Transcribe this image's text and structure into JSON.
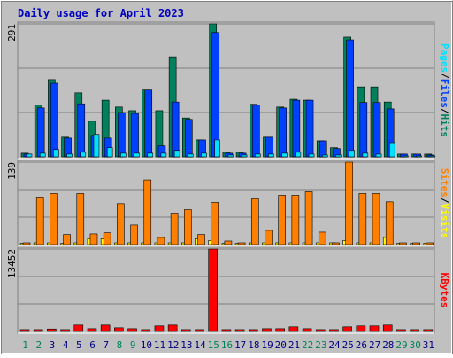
{
  "title": "Daily usage for April 2023",
  "chart_data": [
    {
      "type": "bar",
      "ylim": [
        0,
        291
      ],
      "yticks": [
        291
      ],
      "legend_separator": "/",
      "series": [
        {
          "name": "Hits",
          "color": "#00805c",
          "values": [
            8,
            113,
            169,
            43,
            140,
            78,
            124,
            109,
            101,
            148,
            101,
            219,
            85,
            37,
            291,
            10,
            10,
            115,
            43,
            109,
            126,
            124,
            35,
            20,
            262,
            153,
            153,
            120,
            6,
            6,
            6
          ]
        },
        {
          "name": "Files",
          "color": "#0040ff",
          "values": [
            6,
            107,
            161,
            41,
            116,
            47,
            41,
            97,
            95,
            148,
            24,
            120,
            82,
            37,
            272,
            8,
            8,
            113,
            43,
            107,
            124,
            124,
            35,
            18,
            256,
            119,
            119,
            105,
            6,
            6,
            4
          ]
        },
        {
          "name": "Pages",
          "color": "#00e0ff",
          "values": [
            6,
            8,
            16,
            6,
            10,
            49,
            20,
            8,
            8,
            8,
            8,
            14,
            6,
            8,
            37,
            4,
            4,
            6,
            6,
            8,
            10,
            6,
            4,
            4,
            14,
            8,
            6,
            31,
            2,
            2,
            2
          ]
        }
      ]
    },
    {
      "type": "bar",
      "ylim": [
        0,
        139
      ],
      "yticks": [
        139
      ],
      "legend_separator": "/",
      "series": [
        {
          "name": "Visits",
          "color": "#ffff00",
          "values": [
            2,
            3,
            3,
            2,
            3,
            10,
            10,
            3,
            3,
            3,
            3,
            3,
            3,
            10,
            7,
            2,
            2,
            3,
            3,
            3,
            3,
            3,
            3,
            3,
            7,
            3,
            3,
            12,
            2,
            2,
            2
          ]
        },
        {
          "name": "Sites",
          "color": "#ff8000",
          "values": [
            3,
            80,
            86,
            17,
            86,
            18,
            20,
            69,
            33,
            109,
            12,
            53,
            59,
            17,
            71,
            6,
            3,
            77,
            24,
            83,
            83,
            89,
            21,
            3,
            139,
            86,
            86,
            72,
            3,
            3,
            3
          ]
        }
      ]
    },
    {
      "type": "bar",
      "ylim": [
        0,
        13452
      ],
      "yticks": [
        13452
      ],
      "categories": [
        "1",
        "2",
        "3",
        "4",
        "5",
        "6",
        "7",
        "8",
        "9",
        "10",
        "11",
        "12",
        "13",
        "14",
        "15",
        "16",
        "17",
        "18",
        "19",
        "20",
        "21",
        "22",
        "23",
        "24",
        "25",
        "26",
        "27",
        "28",
        "29",
        "30",
        "31"
      ],
      "category_colors": [
        "#00805c",
        "#00805c",
        "#000080",
        "#000080",
        "#000080",
        "#000080",
        "#000080",
        "#00805c",
        "#00805c",
        "#000080",
        "#000080",
        "#000080",
        "#000080",
        "#000080",
        "#00805c",
        "#00805c",
        "#000080",
        "#000080",
        "#000080",
        "#000080",
        "#000080",
        "#00805c",
        "#00805c",
        "#000080",
        "#000080",
        "#000080",
        "#000080",
        "#000080",
        "#00805c",
        "#00805c",
        "#000080"
      ],
      "series": [
        {
          "name": "KBytes",
          "color": "#ff0000",
          "values": [
            300,
            300,
            400,
            300,
            1040,
            450,
            1040,
            600,
            450,
            300,
            900,
            1040,
            300,
            300,
            13452,
            300,
            300,
            300,
            450,
            450,
            750,
            450,
            300,
            300,
            750,
            900,
            900,
            1040,
            300,
            300,
            300
          ]
        }
      ]
    }
  ]
}
